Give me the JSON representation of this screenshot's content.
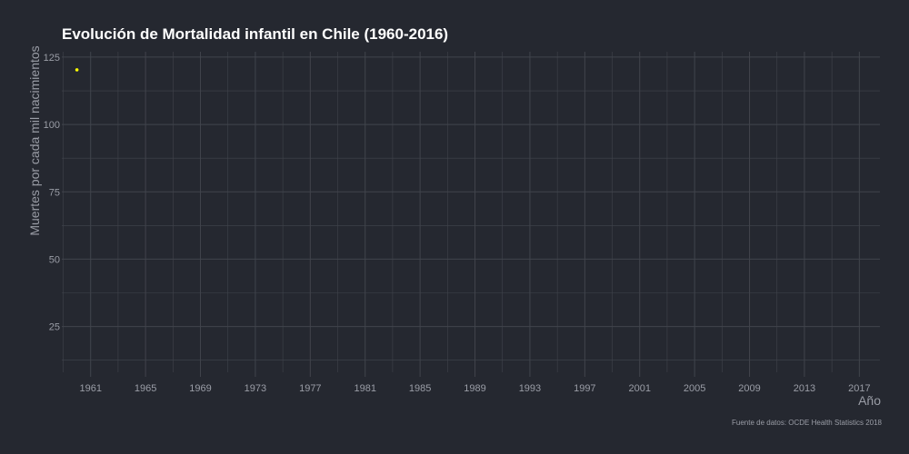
{
  "chart_data": {
    "type": "scatter",
    "title": "Evolución de Mortalidad infantil en Chile (1960-2016)",
    "xlabel": "Año",
    "ylabel": "Muertes por cada mil nacimientos",
    "caption": "Fuente de datos: OCDE Health Statistics 2018",
    "xlim": [
      1958.9,
      2018.5
    ],
    "ylim": [
      8,
      127
    ],
    "x_ticks": [
      1961,
      1965,
      1969,
      1973,
      1977,
      1981,
      1985,
      1989,
      1993,
      1997,
      2001,
      2005,
      2009,
      2013,
      2017
    ],
    "y_ticks": [
      25,
      50,
      75,
      100,
      125
    ],
    "grid": true,
    "series": [
      {
        "color": "#ffff00",
        "points": [
          {
            "x": 1960,
            "y": 120.3
          }
        ]
      }
    ]
  },
  "colors": {
    "background": "#252830",
    "grid": "#41444c",
    "text_muted": "#9a9da6",
    "title": "#ffffff",
    "point": "#ffff00"
  }
}
